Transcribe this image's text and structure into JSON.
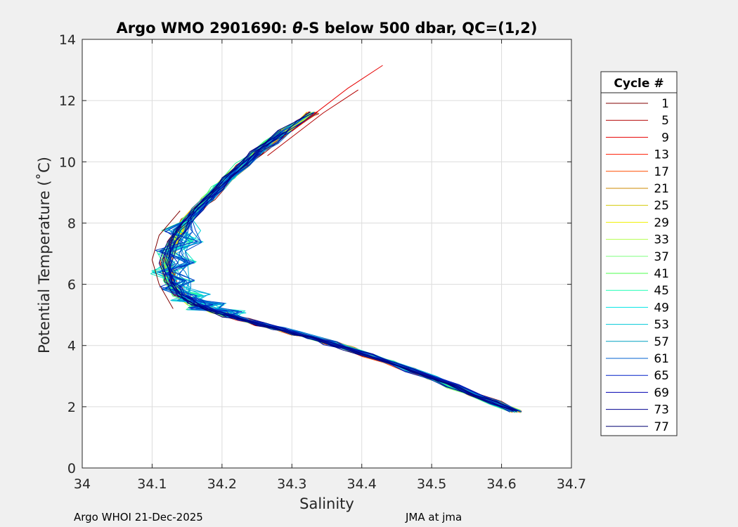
{
  "chart_data": {
    "type": "line",
    "title_prefix": "Argo WMO 2901690: ",
    "title_symbol": "θ",
    "title_suffix": "-S below 500 dbar,  QC=(1,2)",
    "xlabel": "Salinity",
    "ylabel": "Potential Temperature (˚C)",
    "xlim": [
      34.0,
      34.7
    ],
    "ylim": [
      0,
      14
    ],
    "xticks": [
      "34",
      "34.1",
      "34.2",
      "34.3",
      "34.4",
      "34.5",
      "34.6",
      "34.7"
    ],
    "yticks": [
      "0",
      "2",
      "4",
      "6",
      "8",
      "10",
      "12",
      "14"
    ],
    "grid": true,
    "legend": {
      "title": "Cycle #",
      "placement": "right",
      "entries": [
        "1",
        "5",
        "9",
        "13",
        "17",
        "21",
        "25",
        "29",
        "33",
        "37",
        "41",
        "45",
        "49",
        "53",
        "57",
        "61",
        "65",
        "69",
        "73",
        "77"
      ],
      "colors": [
        "#800000",
        "#b30000",
        "#e60000",
        "#ff1a00",
        "#ff4d00",
        "#cc8800",
        "#d4c800",
        "#f0f000",
        "#b3ff4d",
        "#80ff80",
        "#4dff4d",
        "#1affb3",
        "#00e6e6",
        "#00c8d8",
        "#00a0c0",
        "#0060d0",
        "#0020c8",
        "#0000b0",
        "#000090",
        "#000070"
      ]
    },
    "base_profile": {
      "name": "typical theta-S curve",
      "x": [
        34.62,
        34.56,
        34.5,
        34.44,
        34.38,
        34.33,
        34.28,
        34.23,
        34.19,
        34.16,
        34.14,
        34.125,
        34.12,
        34.13,
        34.15,
        34.18,
        34.21,
        34.25,
        34.29,
        34.33,
        34.36
      ],
      "y": [
        1.85,
        2.4,
        2.95,
        3.45,
        3.9,
        4.25,
        4.55,
        4.85,
        5.1,
        5.35,
        5.65,
        6.1,
        6.7,
        7.4,
        8.1,
        8.8,
        9.5,
        10.3,
        11.0,
        11.6,
        12.0
      ]
    },
    "long_profile": {
      "name": "cycle with extended upper range",
      "x": [
        34.3,
        34.34,
        34.38,
        34.43
      ],
      "y": [
        11.0,
        11.7,
        12.4,
        13.15
      ]
    },
    "footer_left": "Argo WHOI 21-Dec-2025",
    "footer_right": "JMA at jma"
  }
}
